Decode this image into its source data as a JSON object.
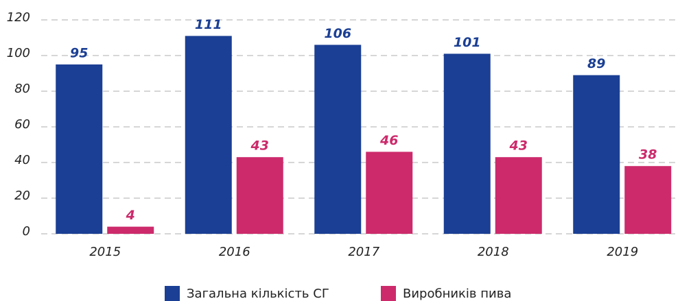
{
  "chart_data": {
    "type": "bar",
    "categories": [
      "2015",
      "2016",
      "2017",
      "2018",
      "2019"
    ],
    "series": [
      {
        "name": "Загальна кількість СГ",
        "color": "#1b3f94",
        "values": [
          95,
          111,
          106,
          101,
          89
        ]
      },
      {
        "name": "Виробників пива",
        "color": "#cc2a6b",
        "values": [
          4,
          43,
          46,
          43,
          38
        ]
      }
    ],
    "ylim": [
      0,
      120
    ],
    "yticks": [
      0,
      20,
      40,
      60,
      80,
      100,
      120
    ],
    "grid": true,
    "legend": "bottom"
  }
}
